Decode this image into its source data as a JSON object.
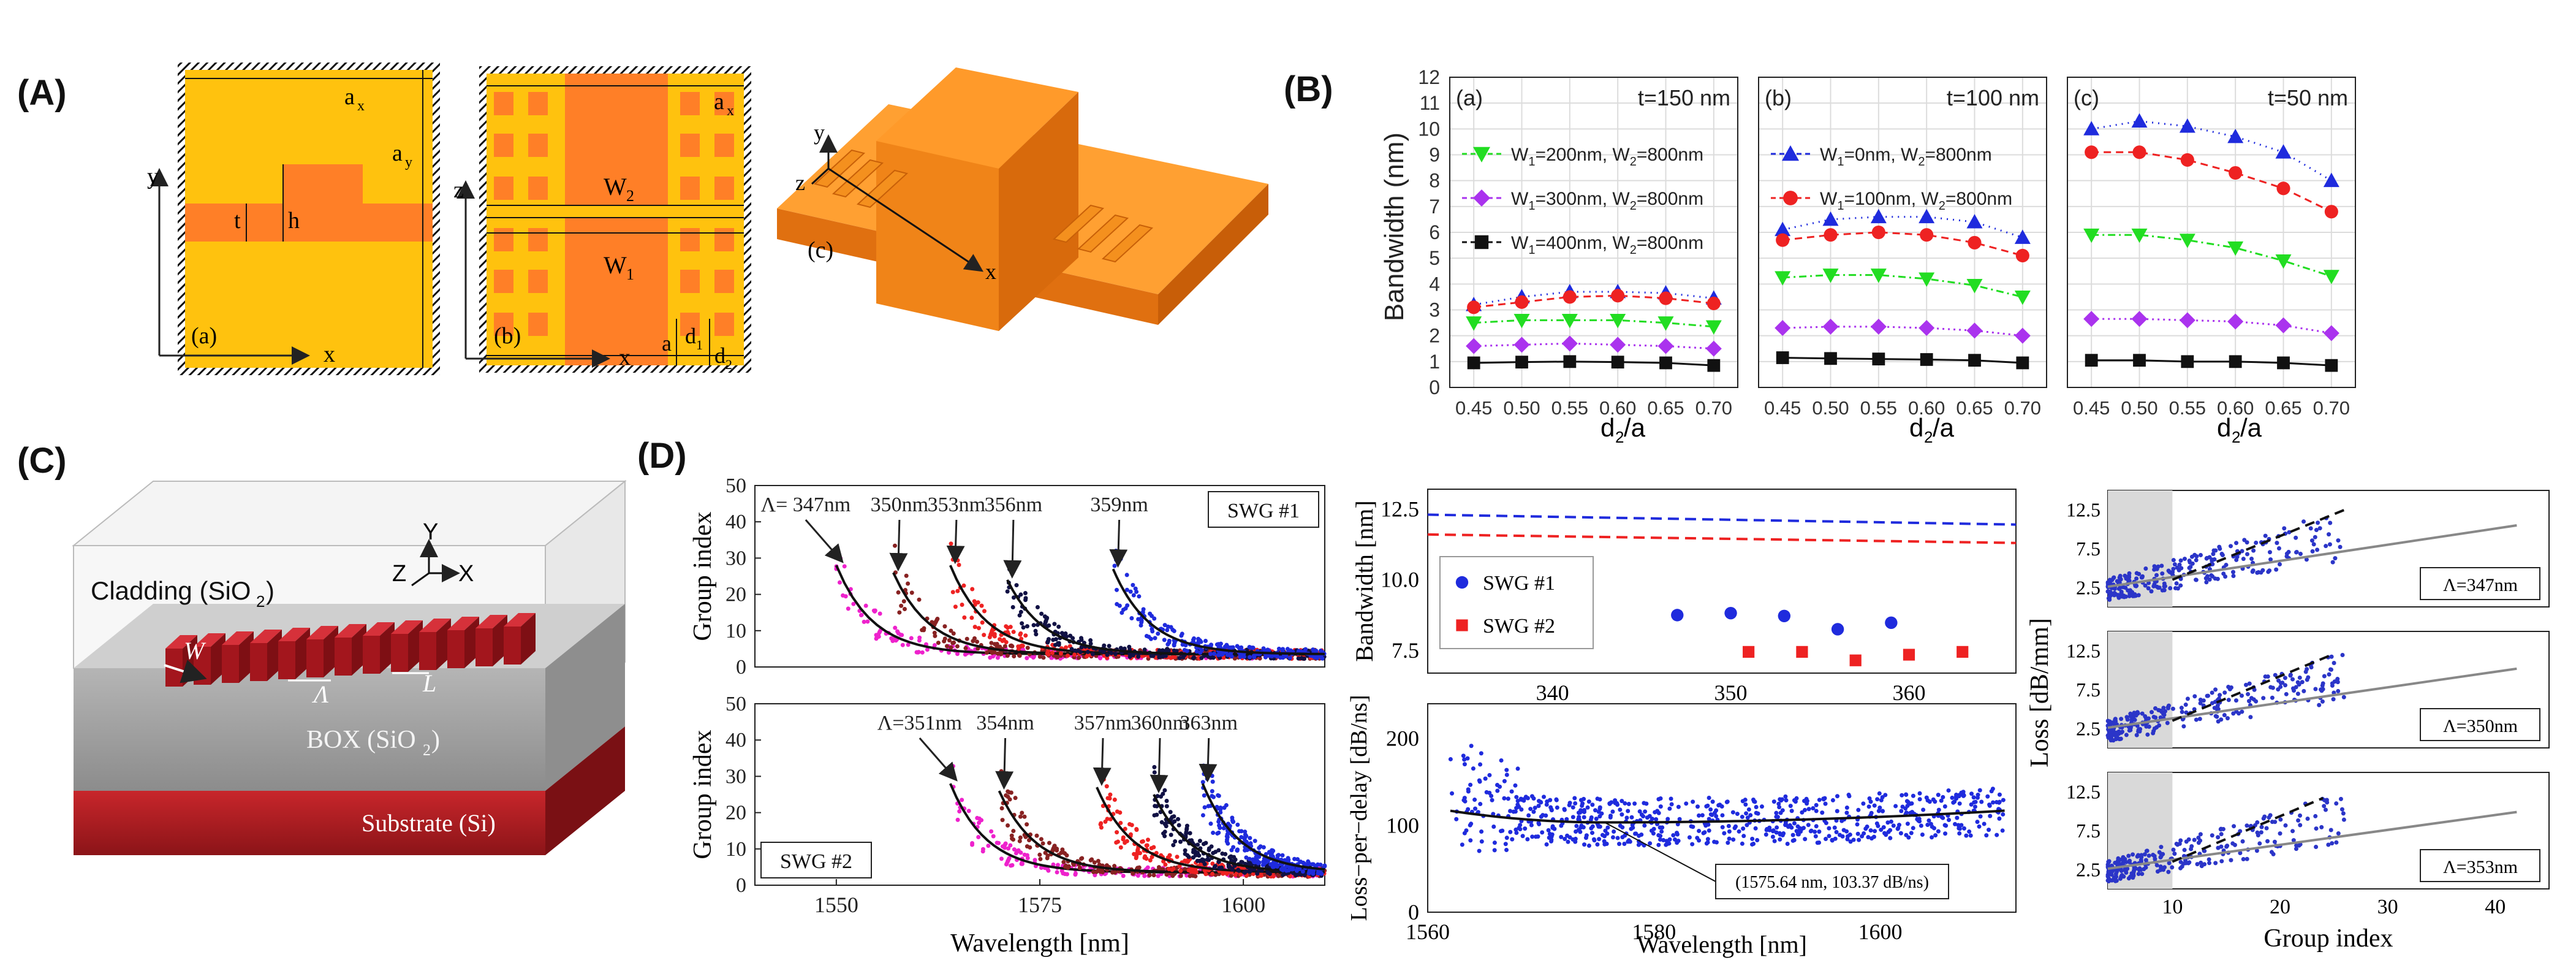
{
  "panel_labels": {
    "A": "(A)",
    "B": "(B)",
    "C": "(C)",
    "D": "(D)"
  },
  "panelA": {
    "sub_a": "(a)",
    "sub_b": "(b)",
    "sub_c": "(c)",
    "axis_x": "x",
    "axis_y": "y",
    "axis_z": "z",
    "a_x": "a",
    "a_x_sub": "x",
    "a_y": "a",
    "a_y_sub": "y",
    "t": "t",
    "h": "h",
    "W2": "W",
    "W2_sub": "2",
    "W1": "W",
    "W1_sub": "1",
    "a": "a",
    "d1": "d",
    "d1_sub": "1",
    "d2": "d",
    "d2_sub": "2",
    "colors": {
      "cladding": "#ffc107",
      "core": "#ff7f27",
      "block": "#ff8c1a"
    }
  },
  "panelB": {
    "ylabel": "Bandwidth (nm)",
    "xlabel": "d",
    "xlabel_sub": "2",
    "xlabel_suffix": "/a",
    "yticks": [
      "0",
      "1",
      "2",
      "3",
      "4",
      "5",
      "6",
      "7",
      "8",
      "9",
      "10",
      "11",
      "12"
    ],
    "xticks": [
      "0.45",
      "0.50",
      "0.55",
      "0.60",
      "0.65",
      "0.70"
    ],
    "subplots": [
      {
        "id": "a",
        "tag": "(a)",
        "title": "t=150 nm",
        "legend": [
          {
            "marker": "tri_down",
            "color": "#22dd22",
            "text": "W",
            "s1": "1",
            "mid": "=200nm, W",
            "s2": "2",
            "end": "=800nm"
          },
          {
            "marker": "diamond",
            "color": "#aa33ee",
            "text": "W",
            "s1": "1",
            "mid": "=300nm, W",
            "s2": "2",
            "end": "=800nm"
          },
          {
            "marker": "square",
            "color": "#111111",
            "text": "W",
            "s1": "1",
            "mid": "=400nm, W",
            "s2": "2",
            "end": "=800nm"
          }
        ]
      },
      {
        "id": "b",
        "tag": "(b)",
        "title": "t=100 nm",
        "legend": [
          {
            "marker": "tri_up",
            "color": "#1f2bdd",
            "text": "W",
            "s1": "1",
            "mid": "=0nm, W",
            "s2": "2",
            "end": "=800nm"
          },
          {
            "marker": "circle",
            "color": "#ee2222",
            "text": "W",
            "s1": "1",
            "mid": "=100nm, W",
            "s2": "2",
            "end": "=800nm"
          }
        ]
      },
      {
        "id": "c",
        "tag": "(c)",
        "title": "t=50 nm",
        "legend": []
      }
    ]
  },
  "chart_data": [
    {
      "type": "line",
      "title": "t=150 nm (a)",
      "xlabel": "d2/a",
      "ylabel": "Bandwidth (nm)",
      "ylim": [
        0,
        12
      ],
      "x": [
        0.45,
        0.5,
        0.55,
        0.6,
        0.65,
        0.7
      ],
      "series": [
        {
          "name": "W1=0nm, W2=800nm",
          "color": "#1f2bdd",
          "marker": "tri_up",
          "dash": "2,8",
          "values": [
            3.2,
            3.5,
            3.7,
            3.7,
            3.65,
            3.45
          ]
        },
        {
          "name": "W1=100nm, W2=800nm",
          "color": "#ee2222",
          "marker": "circle",
          "dash": "12,8",
          "values": [
            3.1,
            3.3,
            3.5,
            3.55,
            3.45,
            3.25
          ]
        },
        {
          "name": "W1=200nm, W2=800nm",
          "color": "#22dd22",
          "marker": "tri_down",
          "dash": "12,6,3,6",
          "values": [
            2.5,
            2.6,
            2.6,
            2.6,
            2.5,
            2.35
          ]
        },
        {
          "name": "W1=300nm, W2=800nm",
          "color": "#aa33ee",
          "marker": "diamond",
          "dash": "3,6",
          "values": [
            1.6,
            1.65,
            1.7,
            1.65,
            1.6,
            1.5
          ]
        },
        {
          "name": "W1=400nm, W2=800nm",
          "color": "#111111",
          "marker": "square",
          "dash": "",
          "values": [
            0.95,
            0.98,
            1.0,
            0.98,
            0.95,
            0.85
          ]
        }
      ]
    },
    {
      "type": "line",
      "title": "t=100 nm (b)",
      "xlabel": "d2/a",
      "ylabel": "Bandwidth (nm)",
      "ylim": [
        0,
        12
      ],
      "x": [
        0.45,
        0.5,
        0.55,
        0.6,
        0.65,
        0.7
      ],
      "series": [
        {
          "name": "W1=0nm, W2=800nm",
          "color": "#1f2bdd",
          "marker": "tri_up",
          "dash": "2,8",
          "values": [
            6.1,
            6.5,
            6.6,
            6.6,
            6.4,
            5.8
          ]
        },
        {
          "name": "W1=100nm, W2=800nm",
          "color": "#ee2222",
          "marker": "circle",
          "dash": "12,8",
          "values": [
            5.7,
            5.9,
            6.0,
            5.9,
            5.6,
            5.1
          ]
        },
        {
          "name": "W1=200nm, W2=800nm",
          "color": "#22dd22",
          "marker": "tri_down",
          "dash": "12,6,3,6",
          "values": [
            4.25,
            4.35,
            4.35,
            4.2,
            3.95,
            3.5
          ]
        },
        {
          "name": "W1=300nm, W2=800nm",
          "color": "#aa33ee",
          "marker": "diamond",
          "dash": "3,6",
          "values": [
            2.3,
            2.35,
            2.35,
            2.3,
            2.2,
            2.0
          ]
        },
        {
          "name": "W1=400nm, W2=800nm",
          "color": "#111111",
          "marker": "square",
          "dash": "",
          "values": [
            1.15,
            1.12,
            1.1,
            1.08,
            1.05,
            0.95
          ]
        }
      ]
    },
    {
      "type": "line",
      "title": "t=50 nm (c)",
      "xlabel": "d2/a",
      "ylabel": "Bandwidth (nm)",
      "ylim": [
        0,
        12
      ],
      "x": [
        0.45,
        0.5,
        0.55,
        0.6,
        0.65,
        0.7
      ],
      "series": [
        {
          "name": "W1=0nm, W2=800nm",
          "color": "#1f2bdd",
          "marker": "tri_up",
          "dash": "2,8",
          "values": [
            10.0,
            10.3,
            10.1,
            9.7,
            9.1,
            8.0
          ]
        },
        {
          "name": "W1=100nm, W2=800nm",
          "color": "#ee2222",
          "marker": "circle",
          "dash": "12,8",
          "values": [
            9.1,
            9.1,
            8.8,
            8.3,
            7.7,
            6.8
          ]
        },
        {
          "name": "W1=200nm, W2=800nm",
          "color": "#22dd22",
          "marker": "tri_down",
          "dash": "12,6,3,6",
          "values": [
            5.9,
            5.9,
            5.7,
            5.4,
            4.9,
            4.3
          ]
        },
        {
          "name": "W1=300nm, W2=800nm",
          "color": "#aa33ee",
          "marker": "diamond",
          "dash": "3,6",
          "values": [
            2.65,
            2.65,
            2.6,
            2.55,
            2.4,
            2.1
          ]
        },
        {
          "name": "W1=400nm, W2=800nm",
          "color": "#111111",
          "marker": "square",
          "dash": "",
          "values": [
            1.05,
            1.05,
            1.0,
            1.0,
            0.95,
            0.85
          ]
        }
      ]
    },
    {
      "type": "scatter",
      "title": "SWG #1 group index",
      "xlabel": "",
      "ylabel": "Group index",
      "xlim": [
        1540,
        1610
      ],
      "ylim": [
        0,
        50
      ],
      "xticks": [],
      "yticks": [
        "0",
        "10",
        "20",
        "30",
        "40",
        "50"
      ],
      "series": [
        {
          "name": "347nm",
          "color": "#ee22cc",
          "start": 1550,
          "peak": 28
        },
        {
          "name": "350nm",
          "color": "#882222",
          "start": 1557,
          "peak": 26
        },
        {
          "name": "353nm",
          "color": "#ee2222",
          "start": 1564,
          "peak": 28
        },
        {
          "name": "356nm",
          "color": "#111144",
          "start": 1571,
          "peak": 24
        },
        {
          "name": "359nm",
          "color": "#1f2bdd",
          "start": 1584,
          "peak": 27
        }
      ]
    },
    {
      "type": "scatter",
      "title": "SWG #2 group index",
      "xlabel": "Wavelength [nm]",
      "ylabel": "Group index",
      "xlim": [
        1540,
        1610
      ],
      "ylim": [
        0,
        50
      ],
      "xticks": [
        "1550",
        "1575",
        "1600"
      ],
      "yticks": [
        "0",
        "10",
        "20",
        "30",
        "40",
        "50"
      ],
      "series": [
        {
          "name": "351nm",
          "color": "#ee22cc",
          "start": 1564,
          "peak": 28
        },
        {
          "name": "354nm",
          "color": "#882222",
          "start": 1570,
          "peak": 26
        },
        {
          "name": "357nm",
          "color": "#ee2222",
          "start": 1582,
          "peak": 27
        },
        {
          "name": "360nm",
          "color": "#111144",
          "start": 1589,
          "peak": 25
        },
        {
          "name": "363nm",
          "color": "#1f2bdd",
          "start": 1595,
          "peak": 28
        }
      ]
    },
    {
      "type": "scatter",
      "title": "Bandwidth vs period",
      "xlabel": "",
      "ylabel": "Bandwidth [nm]",
      "xlim": [
        333,
        366
      ],
      "ylim": [
        6.7,
        13.2
      ],
      "xticks": [
        "340",
        "350",
        "360"
      ],
      "yticks": [
        "7.5",
        "10.0",
        "12.5"
      ],
      "series": [
        {
          "name": "SWG #1",
          "color": "#1f2bdd",
          "marker": "circle",
          "x": [
            347,
            350,
            353,
            356,
            359
          ],
          "values": [
            8.75,
            8.82,
            8.72,
            8.25,
            8.48
          ]
        },
        {
          "name": "SWG #2",
          "color": "#ee2222",
          "marker": "square",
          "x": [
            351,
            354,
            357,
            360,
            363
          ],
          "values": [
            7.45,
            7.45,
            7.15,
            7.35,
            7.45
          ]
        }
      ],
      "dashed_lines": [
        {
          "color": "#1f2bdd",
          "from": 12.3,
          "to": 11.95
        },
        {
          "color": "#ee2222",
          "from": 11.6,
          "to": 11.3
        }
      ]
    },
    {
      "type": "scatter",
      "title": "Loss-per-delay",
      "xlabel": "Wavelength [nm]",
      "ylabel": "Loss-per-delay [dB/ns]",
      "xlim": [
        1560,
        1612
      ],
      "ylim": [
        0,
        240
      ],
      "xticks": [
        "1560",
        "1580",
        "1600"
      ],
      "yticks": [
        "0",
        "100",
        "200"
      ],
      "annotation": "(1575.64 nm, 103.37 dB/ns)"
    },
    {
      "type": "scatter",
      "title": "Loss vs group index",
      "xlabel": "Group index",
      "ylabel": "Loss [dB/mm]",
      "xlim": [
        4,
        45
      ],
      "ylim": [
        0,
        15
      ],
      "xticks": [
        "10",
        "20",
        "30",
        "40"
      ],
      "yticks": [
        "2.5",
        "7.5",
        "12.5"
      ],
      "series": [
        {
          "name": "Λ=347nm"
        },
        {
          "name": "Λ=350nm"
        },
        {
          "name": "Λ=353nm"
        }
      ]
    }
  ],
  "panelC": {
    "cladding": "Cladding (SiO",
    "cladding_sub": "2",
    "cladding_end": ")",
    "box": "BOX (SiO",
    "box_sub": "2",
    "box_end": ")",
    "substrate": "Substrate (Si)",
    "W": "W",
    "Lambda": "Λ",
    "L": "L",
    "axes": {
      "x": "X",
      "y": "Y",
      "z": "Z"
    }
  },
  "panelD": {
    "ylabel_group": "Group index",
    "xlabel_wl": "Wavelength  [nm]",
    "swg1": "SWG #1",
    "swg2": "SWG #2",
    "swg1_labels": [
      "Λ= 347nm",
      "350nm",
      "353nm",
      "356nm",
      "359nm"
    ],
    "swg2_labels": [
      "Λ=351nm",
      "354nm",
      "357nm",
      "360nm",
      "363nm"
    ],
    "bw_ylabel": "Bandwidth [nm]",
    "legend_swg1": "SWG #1",
    "legend_swg2": "SWG #2",
    "lpd_ylabel": "Loss−per−delay [dB/ns]",
    "lpd_annot": "(1575.64 nm, 103.37 dB/ns)",
    "loss_ylabel": "Loss [dB/mm]",
    "gi_xlabel": "Group index",
    "loss_tags": [
      "Λ=347nm",
      "Λ=350nm",
      "Λ=353nm"
    ]
  }
}
